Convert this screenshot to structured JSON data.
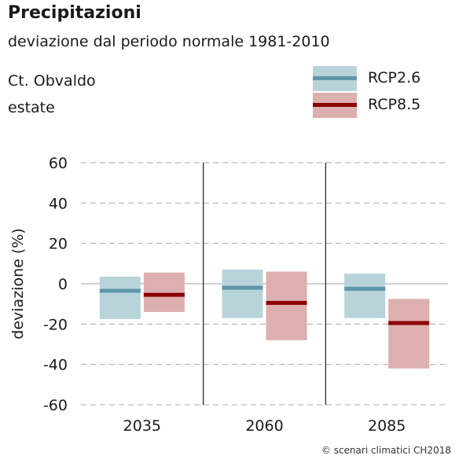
{
  "header": {
    "title": "Precipitazioni",
    "subtitle": "deviazione dal periodo normale 1981-2010",
    "location": "Ct. Obvaldo",
    "season": "estate"
  },
  "legend": [
    {
      "label": "RCP2.6",
      "fill": "#b9d3db",
      "line": "#5f97aa"
    },
    {
      "label": "RCP8.5",
      "fill": "#ddafaf",
      "line": "#8b0000"
    }
  ],
  "credit": "© scenari climatici CH2018",
  "chart_data": {
    "type": "bar",
    "subtype": "range-bars-with-median",
    "title": "Precipitazioni",
    "subtitle": "deviazione dal periodo normale 1981-2010",
    "xlabel": "",
    "ylabel": "deviazione (%)",
    "ylim": [
      -60,
      60
    ],
    "yticks": [
      "60",
      "40",
      "20",
      "0",
      "-20",
      "-40",
      "-60"
    ],
    "grid": "dashed horizontal",
    "legend_position": "top-right",
    "categories": [
      "2035",
      "2060",
      "2085"
    ],
    "series": [
      {
        "name": "RCP2.6",
        "low": [
          -17.5,
          -17,
          -17
        ],
        "median": [
          -3.5,
          -2,
          -2.5
        ],
        "high": [
          3.5,
          7,
          5
        ]
      },
      {
        "name": "RCP8.5",
        "low": [
          -14,
          -28,
          -42
        ],
        "median": [
          -5.5,
          -9.5,
          -19.5
        ],
        "high": [
          5.5,
          6,
          -7.5
        ]
      }
    ]
  }
}
